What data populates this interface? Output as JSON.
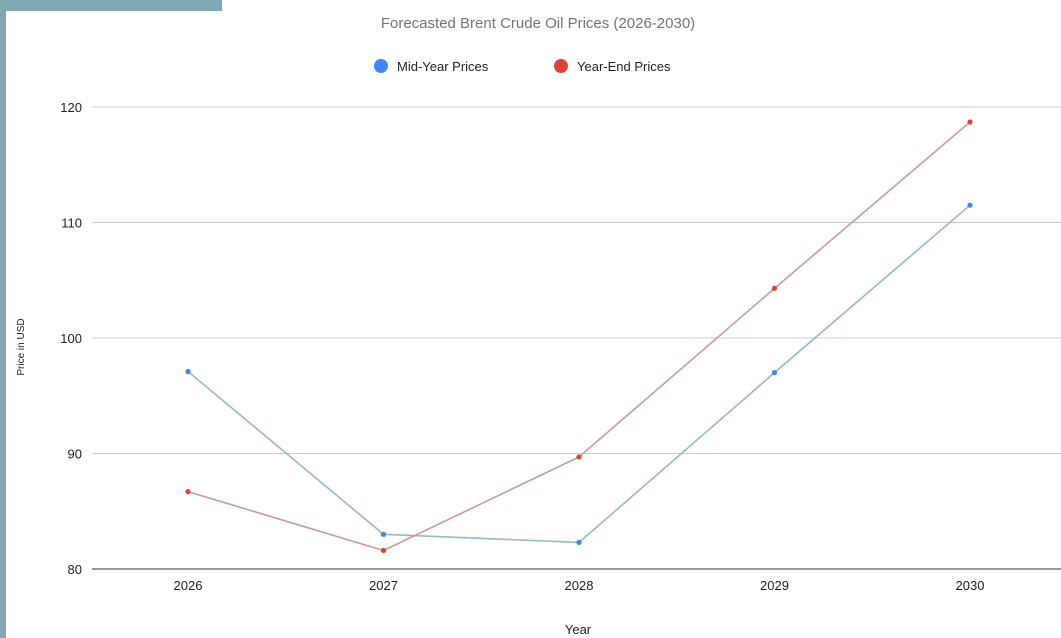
{
  "chart_data": {
    "type": "line",
    "title": "Forecasted Brent Crude Oil Prices (2026-2030)",
    "xlabel": "Year",
    "ylabel": "Price in USD",
    "categories": [
      "2026",
      "2027",
      "2028",
      "2029",
      "2030"
    ],
    "ylim": [
      80,
      120
    ],
    "yticks": [
      80,
      90,
      100,
      110,
      120
    ],
    "grid": true,
    "legend_position": "top",
    "series": [
      {
        "name": "Mid-Year Prices",
        "color": "#4285f4",
        "line_color": "#94b8c8",
        "values": [
          97.1,
          83.0,
          82.3,
          97.0,
          111.5
        ]
      },
      {
        "name": "Year-End Prices",
        "color": "#db4437",
        "line_color": "#c99a98",
        "values": [
          86.7,
          81.6,
          89.7,
          104.3,
          118.7
        ]
      }
    ]
  }
}
